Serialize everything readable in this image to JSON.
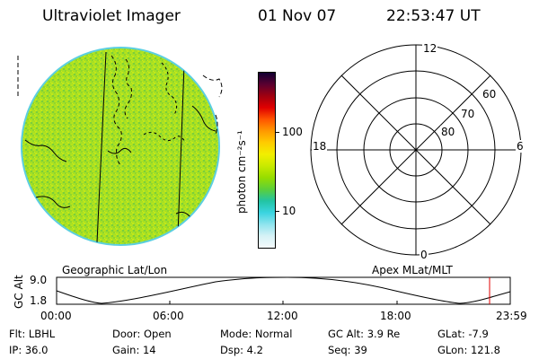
{
  "header": {
    "instrument": "Ultraviolet Imager",
    "date": "01 Nov 07",
    "time": "22:53:47 UT"
  },
  "left_panel": {
    "label": "Geographic Lat/Lon"
  },
  "right_panel": {
    "label": "Apex MLat/MLT",
    "mlt_labels": {
      "top": "12",
      "bottom": "0",
      "left": "18",
      "right": "6"
    },
    "lat_labels": [
      "60",
      "70",
      "80"
    ]
  },
  "colorbar": {
    "unit": "photon cm⁻²s⁻¹",
    "ticks": [
      "100",
      "10"
    ],
    "colors": [
      "#110033",
      "#5a0030",
      "#a00010",
      "#e00000",
      "#ff5500",
      "#ff9900",
      "#ffcc00",
      "#f2ef00",
      "#c8ea00",
      "#96dd00",
      "#5ccf3a",
      "#22c4a4",
      "#3ad4e0",
      "#8fe4ee",
      "#d6f2f6",
      "#f4fafc"
    ]
  },
  "altitude_plot": {
    "ylabel": "GC Alt",
    "yticks": [
      "9.0",
      "1.8"
    ],
    "xticks": [
      "00:00",
      "06:00",
      "12:00",
      "18:00",
      "23:59"
    ],
    "marker_color": "#e00000"
  },
  "info": {
    "flt": "Flt: LBHL",
    "door": "Door: Open",
    "mode": "Mode: Normal",
    "gc_alt": "GC Alt: 3.9 Re",
    "glat": "GLat:  -7.9",
    "ip": "IP: 36.0",
    "gain": "Gain: 14",
    "dsp": "Dsp:    4.2",
    "seq": "Seq: 39",
    "glon": "GLon: 121.8"
  }
}
